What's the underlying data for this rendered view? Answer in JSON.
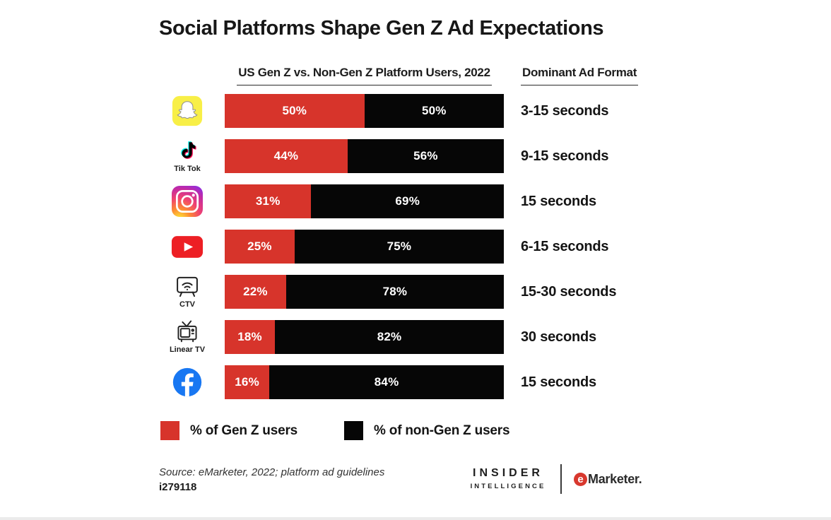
{
  "title": "Social Platforms Shape Gen Z Ad Expectations",
  "columns": {
    "left_header": "US Gen Z vs. Non-Gen Z Platform Users, 2022",
    "right_header": "Dominant Ad Format"
  },
  "colors": {
    "genz_red": "#D7342B",
    "nongenz_black": "#060606",
    "snapchat_yellow": "#F8EF47",
    "youtube_red": "#ED1F24",
    "facebook_blue": "#1877F2"
  },
  "chart_data": {
    "type": "bar",
    "orientation": "horizontal",
    "stacked": true,
    "x_range_percent": [
      0,
      100
    ],
    "categories": [
      "Snapchat",
      "Tik Tok",
      "Instagram",
      "YouTube",
      "CTV",
      "Linear TV",
      "Facebook"
    ],
    "series": [
      {
        "name": "% of Gen Z users",
        "color": "#D7342B",
        "values": [
          50,
          44,
          31,
          25,
          22,
          18,
          16
        ]
      },
      {
        "name": "% of non-Gen Z users",
        "color": "#060606",
        "values": [
          50,
          56,
          69,
          75,
          78,
          82,
          84
        ]
      }
    ],
    "ad_formats": [
      "3-15 seconds",
      "9-15 seconds",
      "15 seconds",
      "6-15 seconds",
      "15-30 seconds",
      "30 seconds",
      "15 seconds"
    ],
    "rows": [
      {
        "platform": "Snapchat",
        "icon_caption": "",
        "genz": 50,
        "nongenz": 50,
        "genz_label": "50%",
        "nongenz_label": "50%",
        "ad_format": "3-15 seconds"
      },
      {
        "platform": "Tik Tok",
        "icon_caption": "Tik Tok",
        "genz": 44,
        "nongenz": 56,
        "genz_label": "44%",
        "nongenz_label": "56%",
        "ad_format": "9-15 seconds"
      },
      {
        "platform": "Instagram",
        "icon_caption": "",
        "genz": 31,
        "nongenz": 69,
        "genz_label": "31%",
        "nongenz_label": "69%",
        "ad_format": "15 seconds"
      },
      {
        "platform": "YouTube",
        "icon_caption": "",
        "genz": 25,
        "nongenz": 75,
        "genz_label": "25%",
        "nongenz_label": "75%",
        "ad_format": "6-15 seconds"
      },
      {
        "platform": "CTV",
        "icon_caption": "CTV",
        "genz": 22,
        "nongenz": 78,
        "genz_label": "22%",
        "nongenz_label": "78%",
        "ad_format": "15-30 seconds"
      },
      {
        "platform": "Linear TV",
        "icon_caption": "Linear TV",
        "genz": 18,
        "nongenz": 82,
        "genz_label": "18%",
        "nongenz_label": "82%",
        "ad_format": "30 seconds"
      },
      {
        "platform": "Facebook",
        "icon_caption": "",
        "genz": 16,
        "nongenz": 84,
        "genz_label": "16%",
        "nongenz_label": "84%",
        "ad_format": "15 seconds"
      }
    ]
  },
  "legend": [
    {
      "label": "% of Gen Z users",
      "color": "#D7342B"
    },
    {
      "label": "% of non-Gen Z users",
      "color": "#060606"
    }
  ],
  "footer": {
    "source": "Source: eMarketer, 2022; platform ad guidelines",
    "chart_id": "i279118",
    "brand_line1": "INSIDER",
    "brand_line2": "INTELLIGENCE",
    "emarketer_e": "e",
    "emarketer_rest": "Marketer."
  }
}
